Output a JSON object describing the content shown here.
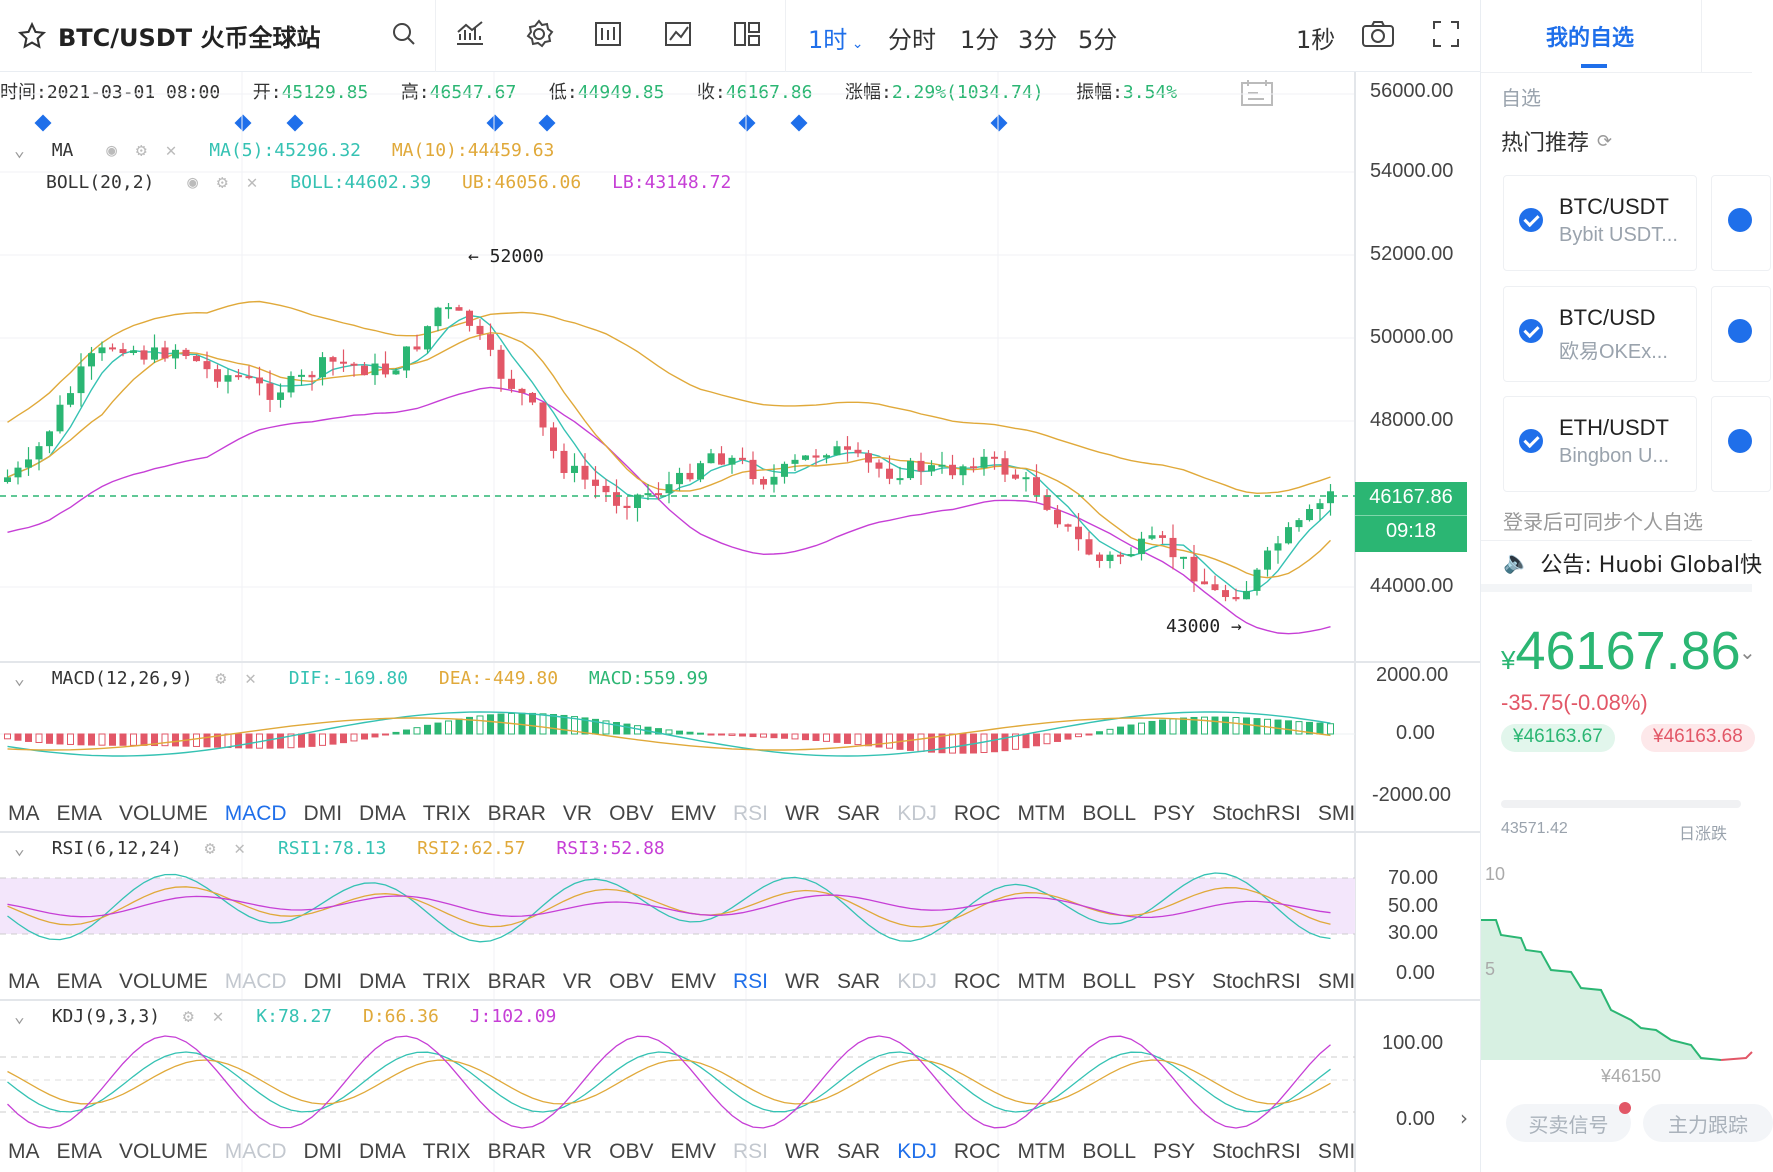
{
  "toolbar": {
    "symbol": "BTC/USDT 火币全球站",
    "intervals": [
      "1时",
      "分时",
      "1分",
      "3分",
      "5分"
    ],
    "active_interval": "1时",
    "refresh": "1秒"
  },
  "ohlc": {
    "time_label": "时间:",
    "time": "2021-03-01 08:00",
    "open_label": "开:",
    "open": "45129.85",
    "high_label": "高:",
    "high": "46547.67",
    "low_label": "低:",
    "low": "44949.85",
    "close_label": "收:",
    "close": "46167.86",
    "change_label": "涨幅:",
    "change": "2.29%(1034.74)",
    "amp_label": "振幅:",
    "amp": "3.54%"
  },
  "ma": {
    "name": "MA",
    "ma5": "MA(5):45296.32",
    "ma10": "MA(10):44459.63"
  },
  "boll": {
    "name": "BOLL(20,2)",
    "mid": "BOLL:44602.39",
    "ub": "UB:46056.06",
    "lb": "LB:43148.72"
  },
  "macd": {
    "name": "MACD(12,26,9)",
    "dif": "DIF:-169.80",
    "dea": "DEA:-449.80",
    "macd": "MACD:559.99"
  },
  "rsi": {
    "name": "RSI(6,12,24)",
    "r1": "RSI1:78.13",
    "r2": "RSI2:62.57",
    "r3": "RSI3:52.88"
  },
  "kdj": {
    "name": "KDJ(9,3,3)",
    "k": "K:78.27",
    "d": "D:66.36",
    "j": "J:102.09"
  },
  "indicator_tabs": [
    "MA",
    "EMA",
    "VOLUME",
    "MACD",
    "DMI",
    "DMA",
    "TRIX",
    "BRAR",
    "VR",
    "OBV",
    "EMV",
    "RSI",
    "WR",
    "SAR",
    "KDJ",
    "ROC",
    "MTM",
    "BOLL",
    "PSY",
    "StochRSI",
    "SMI"
  ],
  "price_axis": [
    "56000.00",
    "54000.00",
    "52000.00",
    "50000.00",
    "48000.00",
    "44000.00"
  ],
  "current_price": "46167.86",
  "countdown": "09:18",
  "annot_high": "← 52000",
  "annot_low": "43000 →",
  "macd_axis": [
    "2000.00",
    "0.00",
    "-2000.00"
  ],
  "rsi_axis": [
    "70.00",
    "50.00",
    "30.00",
    "0.00"
  ],
  "kdj_axis": [
    "100.00",
    "0.00"
  ],
  "right_panel": {
    "tab": "我的自选",
    "watch_label": "自选",
    "hot_label": "热门推荐",
    "cards": [
      {
        "pair": "BTC/USDT",
        "exchange": "Bybit USDT..."
      },
      {
        "pair": "BTC/USD",
        "exchange": "欧易OKEx..."
      },
      {
        "pair": "ETH/USDT",
        "exchange": "Bingbon U..."
      }
    ],
    "login_hint": "登录后可同步个人自选",
    "notice": "公告: Huobi Global快",
    "price": "46167.86",
    "currency": "¥",
    "change": "-35.75(-0.08%)",
    "bid": "¥46163.67",
    "ask": "¥46163.68",
    "mini_low": "43571.42",
    "mini_label": "日涨跌",
    "depth_axis": [
      "10",
      "5"
    ],
    "depth_price": "¥46150",
    "btn_signal": "买卖信号",
    "btn_track": "主力跟踪"
  },
  "colors": {
    "up": "#2bb673",
    "down": "#e25767",
    "accent": "#1f6fea",
    "ma5": "#35c2b3",
    "ma10": "#e0a93a",
    "boll_lb": "#c63fd6"
  }
}
